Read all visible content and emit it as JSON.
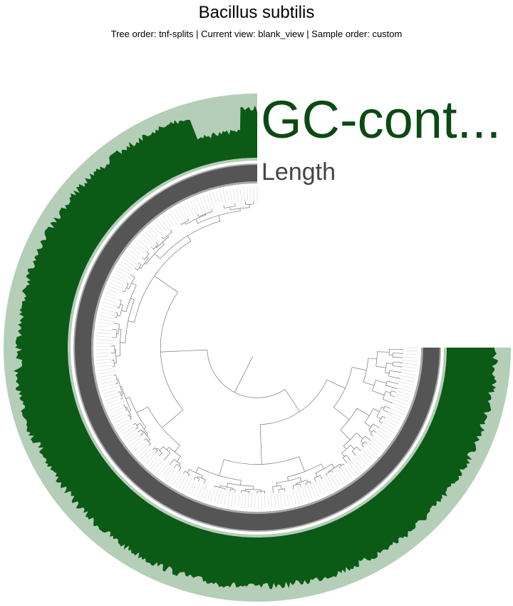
{
  "header": {
    "title": "Bacillus subtilis",
    "subtitle": "Tree order: tnf-splits | Current view: blank_view | Sample order: custom"
  },
  "layers": {
    "gc_label": "GC-cont...",
    "length_label": "Length"
  },
  "colors": {
    "gc_bar": "#0b5a16",
    "gc_background": "#b4ceb8",
    "length_bar": "#555555",
    "length_background": "#aaaaaa",
    "tree_line": "#777777",
    "leaf_line": "#d7d7d7",
    "gc_label": "#0b4a12",
    "length_label": "#444444"
  }
}
